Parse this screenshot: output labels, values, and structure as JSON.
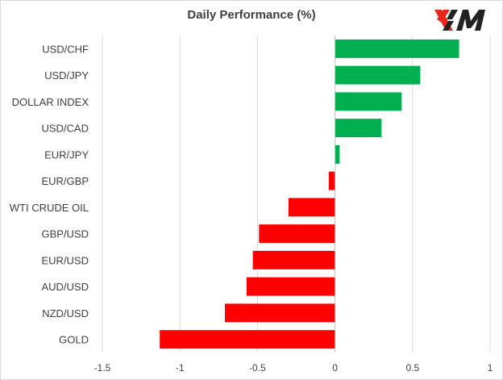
{
  "chart_data": {
    "type": "bar",
    "orientation": "horizontal",
    "title": "Daily Performance  (%)",
    "xlabel": "",
    "ylabel": "",
    "categories": [
      "USD/CHF",
      "USD/JPY",
      "DOLLAR INDEX",
      "USD/CAD",
      "EUR/JPY",
      "EUR/GBP",
      "WTI CRUDE OIL",
      "GBP/USD",
      "EUR/USD",
      "AUD/USD",
      "NZD/USD",
      "GOLD"
    ],
    "values": [
      0.8,
      0.55,
      0.43,
      0.3,
      0.03,
      -0.04,
      -0.3,
      -0.49,
      -0.53,
      -0.57,
      -0.71,
      -1.13
    ],
    "xlim": [
      -1.5,
      1
    ],
    "xticks": [
      -1.5,
      -1,
      -0.5,
      0,
      0.5,
      1
    ],
    "xtick_labels": [
      "-1.5",
      "-1",
      "-0.5",
      "0",
      "0.5",
      "1"
    ],
    "grid": "vertical",
    "legend": "none",
    "colors": {
      "positive": "#00b050",
      "negative": "#ff0000",
      "grid": "#d9d9d9",
      "axis": "#bfbfbf",
      "text": "#404040"
    }
  },
  "logo": {
    "text": "XM",
    "color_red": "#e8261c",
    "color_dark": "#222222"
  }
}
